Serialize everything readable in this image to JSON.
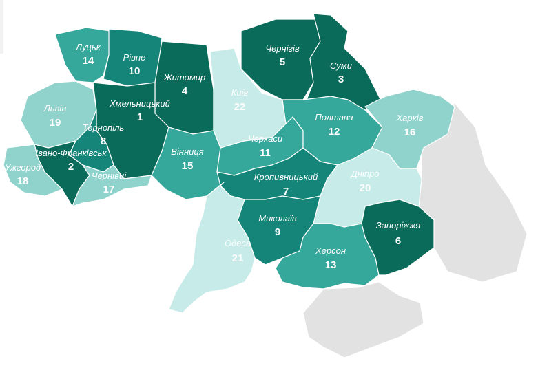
{
  "colors": {
    "rank_1_5": "#0b6b5a",
    "rank_6_10": "#15857a",
    "rank_11_15": "#35a79b",
    "rank_16_19": "#8fd3cc",
    "rank_20_22": "#c7ebe8",
    "occupied": "#e2e2e2",
    "label": "#ffffff"
  },
  "regions": {
    "lutsk": {
      "city": "Луцьк",
      "rank": "14"
    },
    "rivne": {
      "city": "Рівне",
      "rank": "10"
    },
    "zhytomyr": {
      "city": "Житомир",
      "rank": "4"
    },
    "kyiv": {
      "city": "Київ",
      "rank": "22"
    },
    "chernihiv": {
      "city": "Чернігів",
      "rank": "5"
    },
    "sumy": {
      "city": "Суми",
      "rank": "3"
    },
    "lviv": {
      "city": "Львів",
      "rank": "19"
    },
    "khmelnytskyi": {
      "city": "Хмельницький",
      "rank": "1"
    },
    "ternopil": {
      "city": "Тернопіль",
      "rank": "8"
    },
    "ivano_frankivsk": {
      "city": "Івано-Франківськ",
      "rank": "2"
    },
    "uzhhorod": {
      "city": "Ужгород",
      "rank": "18"
    },
    "chernivtsi": {
      "city": "Чернівці",
      "rank": "17"
    },
    "vinnytsia": {
      "city": "Вінниця",
      "rank": "15"
    },
    "cherkasy": {
      "city": "Черкаси",
      "rank": "11"
    },
    "poltava": {
      "city": "Полтава",
      "rank": "12"
    },
    "kharkiv": {
      "city": "Харків",
      "rank": "16"
    },
    "kropyvnytskyi": {
      "city": "Кропивницький",
      "rank": "7"
    },
    "dnipro": {
      "city": "Дніпро",
      "rank": "20"
    },
    "mykolaiv": {
      "city": "Миколаїв",
      "rank": "9"
    },
    "odesa": {
      "city": "Одеса",
      "rank": "21"
    },
    "kherson": {
      "city": "Херсон",
      "rank": "13"
    },
    "zaporizhzhia": {
      "city": "Запоріжжя",
      "rank": "6"
    }
  }
}
